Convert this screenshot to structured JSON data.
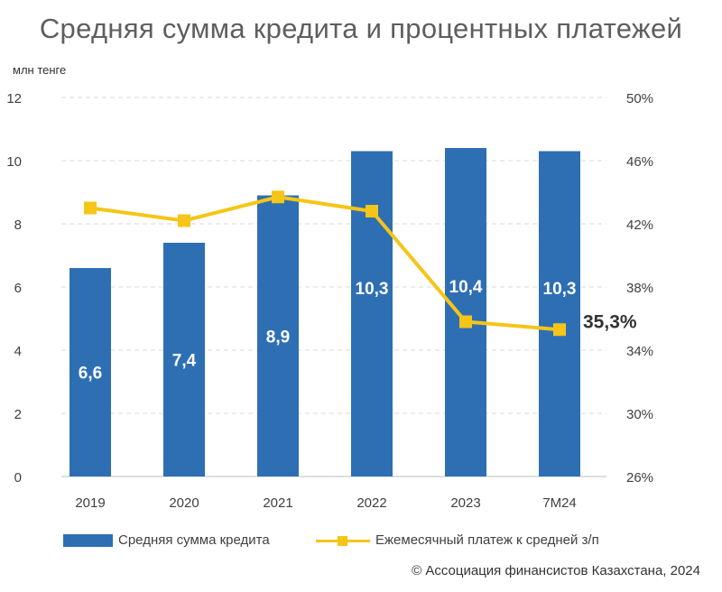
{
  "chart_data": {
    "type": "bar+line",
    "title": "Средняя сумма кредита и процентных платежей",
    "ylabel_left": "млн тенге",
    "categories": [
      "2019",
      "2020",
      "2021",
      "2022",
      "2023",
      "7М24"
    ],
    "series": [
      {
        "name": "Средняя сумма кредита",
        "type": "bar",
        "axis": "left",
        "color": "#2e6fb3",
        "values": [
          6.6,
          7.4,
          8.9,
          10.3,
          10.4,
          10.3
        ],
        "labels": [
          "6,6",
          "7,4",
          "8,9",
          "10,3",
          "10,4",
          "10,3"
        ]
      },
      {
        "name": "Ежемесячный платеж к средней з/п",
        "type": "line",
        "axis": "right",
        "color": "#f5c518",
        "values": [
          43.0,
          42.2,
          43.7,
          42.8,
          35.8,
          35.3
        ],
        "end_label": "35,3%"
      }
    ],
    "left_axis": {
      "ylim": [
        0,
        12
      ],
      "ticks": [
        "0",
        "2",
        "4",
        "6",
        "8",
        "10",
        "12"
      ]
    },
    "right_axis": {
      "ylim": [
        26,
        50
      ],
      "ticks": [
        "26%",
        "30%",
        "34%",
        "38%",
        "42%",
        "46%",
        "50%"
      ]
    },
    "grid": true
  },
  "legend": {
    "bar_label": "Средняя сумма кредита",
    "line_label": "Ежемесячный платеж к средней з/п"
  },
  "copyright": "© Ассоциация финансистов Казахстана, 2024"
}
